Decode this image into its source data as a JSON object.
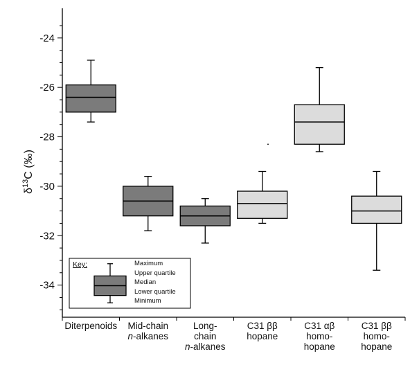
{
  "chart_data": {
    "type": "box",
    "ylabel": "δ13C (‰)",
    "ylabel_base": "δ",
    "ylabel_sup": "13",
    "ylabel_rest": "C (‰)",
    "ylim": [
      -35.3,
      -22.8
    ],
    "yticks": [
      -24,
      -26,
      -28,
      -30,
      -32,
      -34
    ],
    "grid": false,
    "categories": [
      {
        "line1": "Diterpenoids",
        "line2": "",
        "line2_italic": "",
        "line2_rest": "",
        "line3": "",
        "line3_italic": "",
        "line3_rest": ""
      },
      {
        "line1": "Mid-chain",
        "line2": "",
        "line2_italic": "n",
        "line2_rest": "-alkanes",
        "line3": "",
        "line3_italic": "",
        "line3_rest": ""
      },
      {
        "line1": "Long-",
        "line2": "chain",
        "line2_italic": "",
        "line2_rest": "",
        "line3": "",
        "line3_italic": "n",
        "line3_rest": "-alkanes"
      },
      {
        "line1": "C31 ββ",
        "line2": "hopane",
        "line2_italic": "",
        "line2_rest": "",
        "line3": "",
        "line3_italic": "",
        "line3_rest": ""
      },
      {
        "line1": "C31 αβ",
        "line2": "homo-",
        "line2_italic": "",
        "line2_rest": "",
        "line3": "hopane",
        "line3_italic": "",
        "line3_rest": ""
      },
      {
        "line1": "C31 ββ",
        "line2": "homo-",
        "line2_italic": "",
        "line2_rest": "",
        "line3": "hopane",
        "line3_italic": "",
        "line3_rest": ""
      }
    ],
    "series": [
      {
        "min": -27.4,
        "q1": -27.0,
        "median": -26.4,
        "q3": -25.9,
        "max": -24.9,
        "color": "#7b7b7b"
      },
      {
        "min": -31.8,
        "q1": -31.2,
        "median": -30.6,
        "q3": -30.0,
        "max": -29.6,
        "color": "#7b7b7b"
      },
      {
        "min": -32.3,
        "q1": -31.6,
        "median": -31.2,
        "q3": -30.8,
        "max": -30.5,
        "color": "#7b7b7b"
      },
      {
        "min": -31.5,
        "q1": -31.3,
        "median": -30.7,
        "q3": -30.2,
        "max": -29.4,
        "color": "#dcdcdc"
      },
      {
        "min": -28.6,
        "q1": -28.3,
        "median": -27.4,
        "q3": -26.7,
        "max": -25.2,
        "color": "#dcdcdc"
      },
      {
        "min": -33.4,
        "q1": -31.5,
        "median": -31.0,
        "q3": -30.4,
        "max": -29.4,
        "color": "#dcdcdc"
      }
    ],
    "stray_point": {
      "x": 3.6,
      "y": -28.3
    },
    "key": {
      "title": "Key:",
      "items": [
        "Maximum",
        "Upper quartile",
        "Median",
        "Lower quartile",
        "Minimum"
      ],
      "box": {
        "min": -34.5,
        "q1": -34.2,
        "median": -33.8,
        "q3": -33.4,
        "max": -32.9
      },
      "color": "#7b7b7b"
    }
  }
}
